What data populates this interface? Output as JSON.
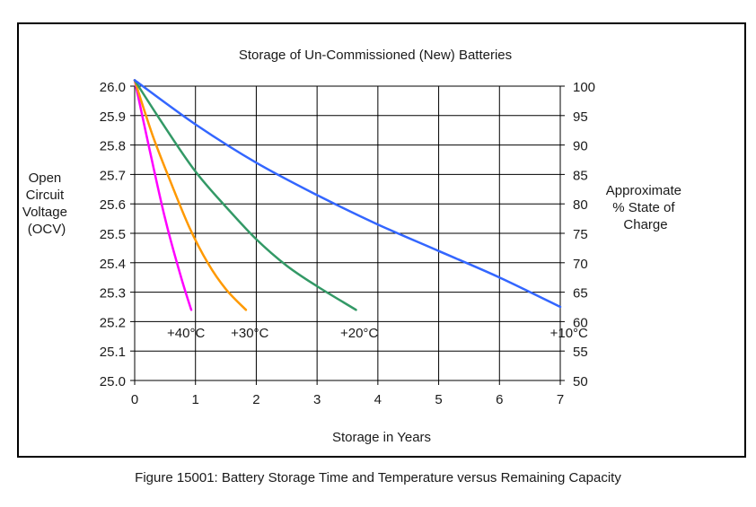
{
  "chart_data": {
    "type": "line",
    "title": "Storage of Un-Commissioned (New) Batteries",
    "xlabel": "Storage in Years",
    "ylabel_left": [
      "Open",
      "Circuit",
      "Voltage",
      "(OCV)"
    ],
    "ylabel_right": [
      "Approximate",
      "% State of",
      "Charge"
    ],
    "xlim": [
      0,
      7
    ],
    "ylim": [
      25.0,
      26.0
    ],
    "y2lim": [
      50,
      100
    ],
    "x_ticks": [
      "0",
      "1",
      "2",
      "3",
      "4",
      "5",
      "6",
      "7"
    ],
    "y_ticks": [
      "25.0",
      "25.1",
      "25.2",
      "25.3",
      "25.4",
      "25.5",
      "25.6",
      "25.7",
      "25.8",
      "25.9",
      "26.0"
    ],
    "y2_ticks": [
      "50",
      "55",
      "60",
      "65",
      "70",
      "75",
      "80",
      "85",
      "90",
      "95",
      "100"
    ],
    "grid": true,
    "series": [
      {
        "name": "+40°C",
        "color": "#ff00ff",
        "x": [
          0,
          0.25,
          0.5,
          0.75,
          0.93
        ],
        "y": [
          26.02,
          25.78,
          25.55,
          25.36,
          25.24
        ]
      },
      {
        "name": "+30°C",
        "color": "#ff9900",
        "x": [
          0,
          0.3,
          0.6,
          0.9,
          1.2,
          1.5,
          1.83
        ],
        "y": [
          26.02,
          25.83,
          25.67,
          25.52,
          25.4,
          25.31,
          25.24
        ]
      },
      {
        "name": "+20°C",
        "color": "#339966",
        "x": [
          0,
          0.5,
          1,
          1.5,
          2,
          2.5,
          3,
          3.64
        ],
        "y": [
          26.02,
          25.86,
          25.71,
          25.59,
          25.48,
          25.39,
          25.32,
          25.24
        ]
      },
      {
        "name": "+10°C",
        "color": "#3366ff",
        "x": [
          0,
          1,
          2,
          3,
          4,
          5,
          6,
          7
        ],
        "y": [
          26.02,
          25.87,
          25.74,
          25.63,
          25.53,
          25.44,
          25.35,
          25.25
        ]
      }
    ],
    "series_labels": [
      {
        "text": "+40°C",
        "x": 0.0,
        "y": 25.15
      },
      {
        "text": "+30°C",
        "x": 1.05,
        "y": 25.15
      },
      {
        "text": "+20°C",
        "x": 2.85,
        "y": 25.15
      },
      {
        "text": "+10°C",
        "x": 6.3,
        "y": 25.15
      }
    ]
  },
  "caption": "Figure 15001: Battery Storage Time and Temperature versus Remaining Capacity"
}
